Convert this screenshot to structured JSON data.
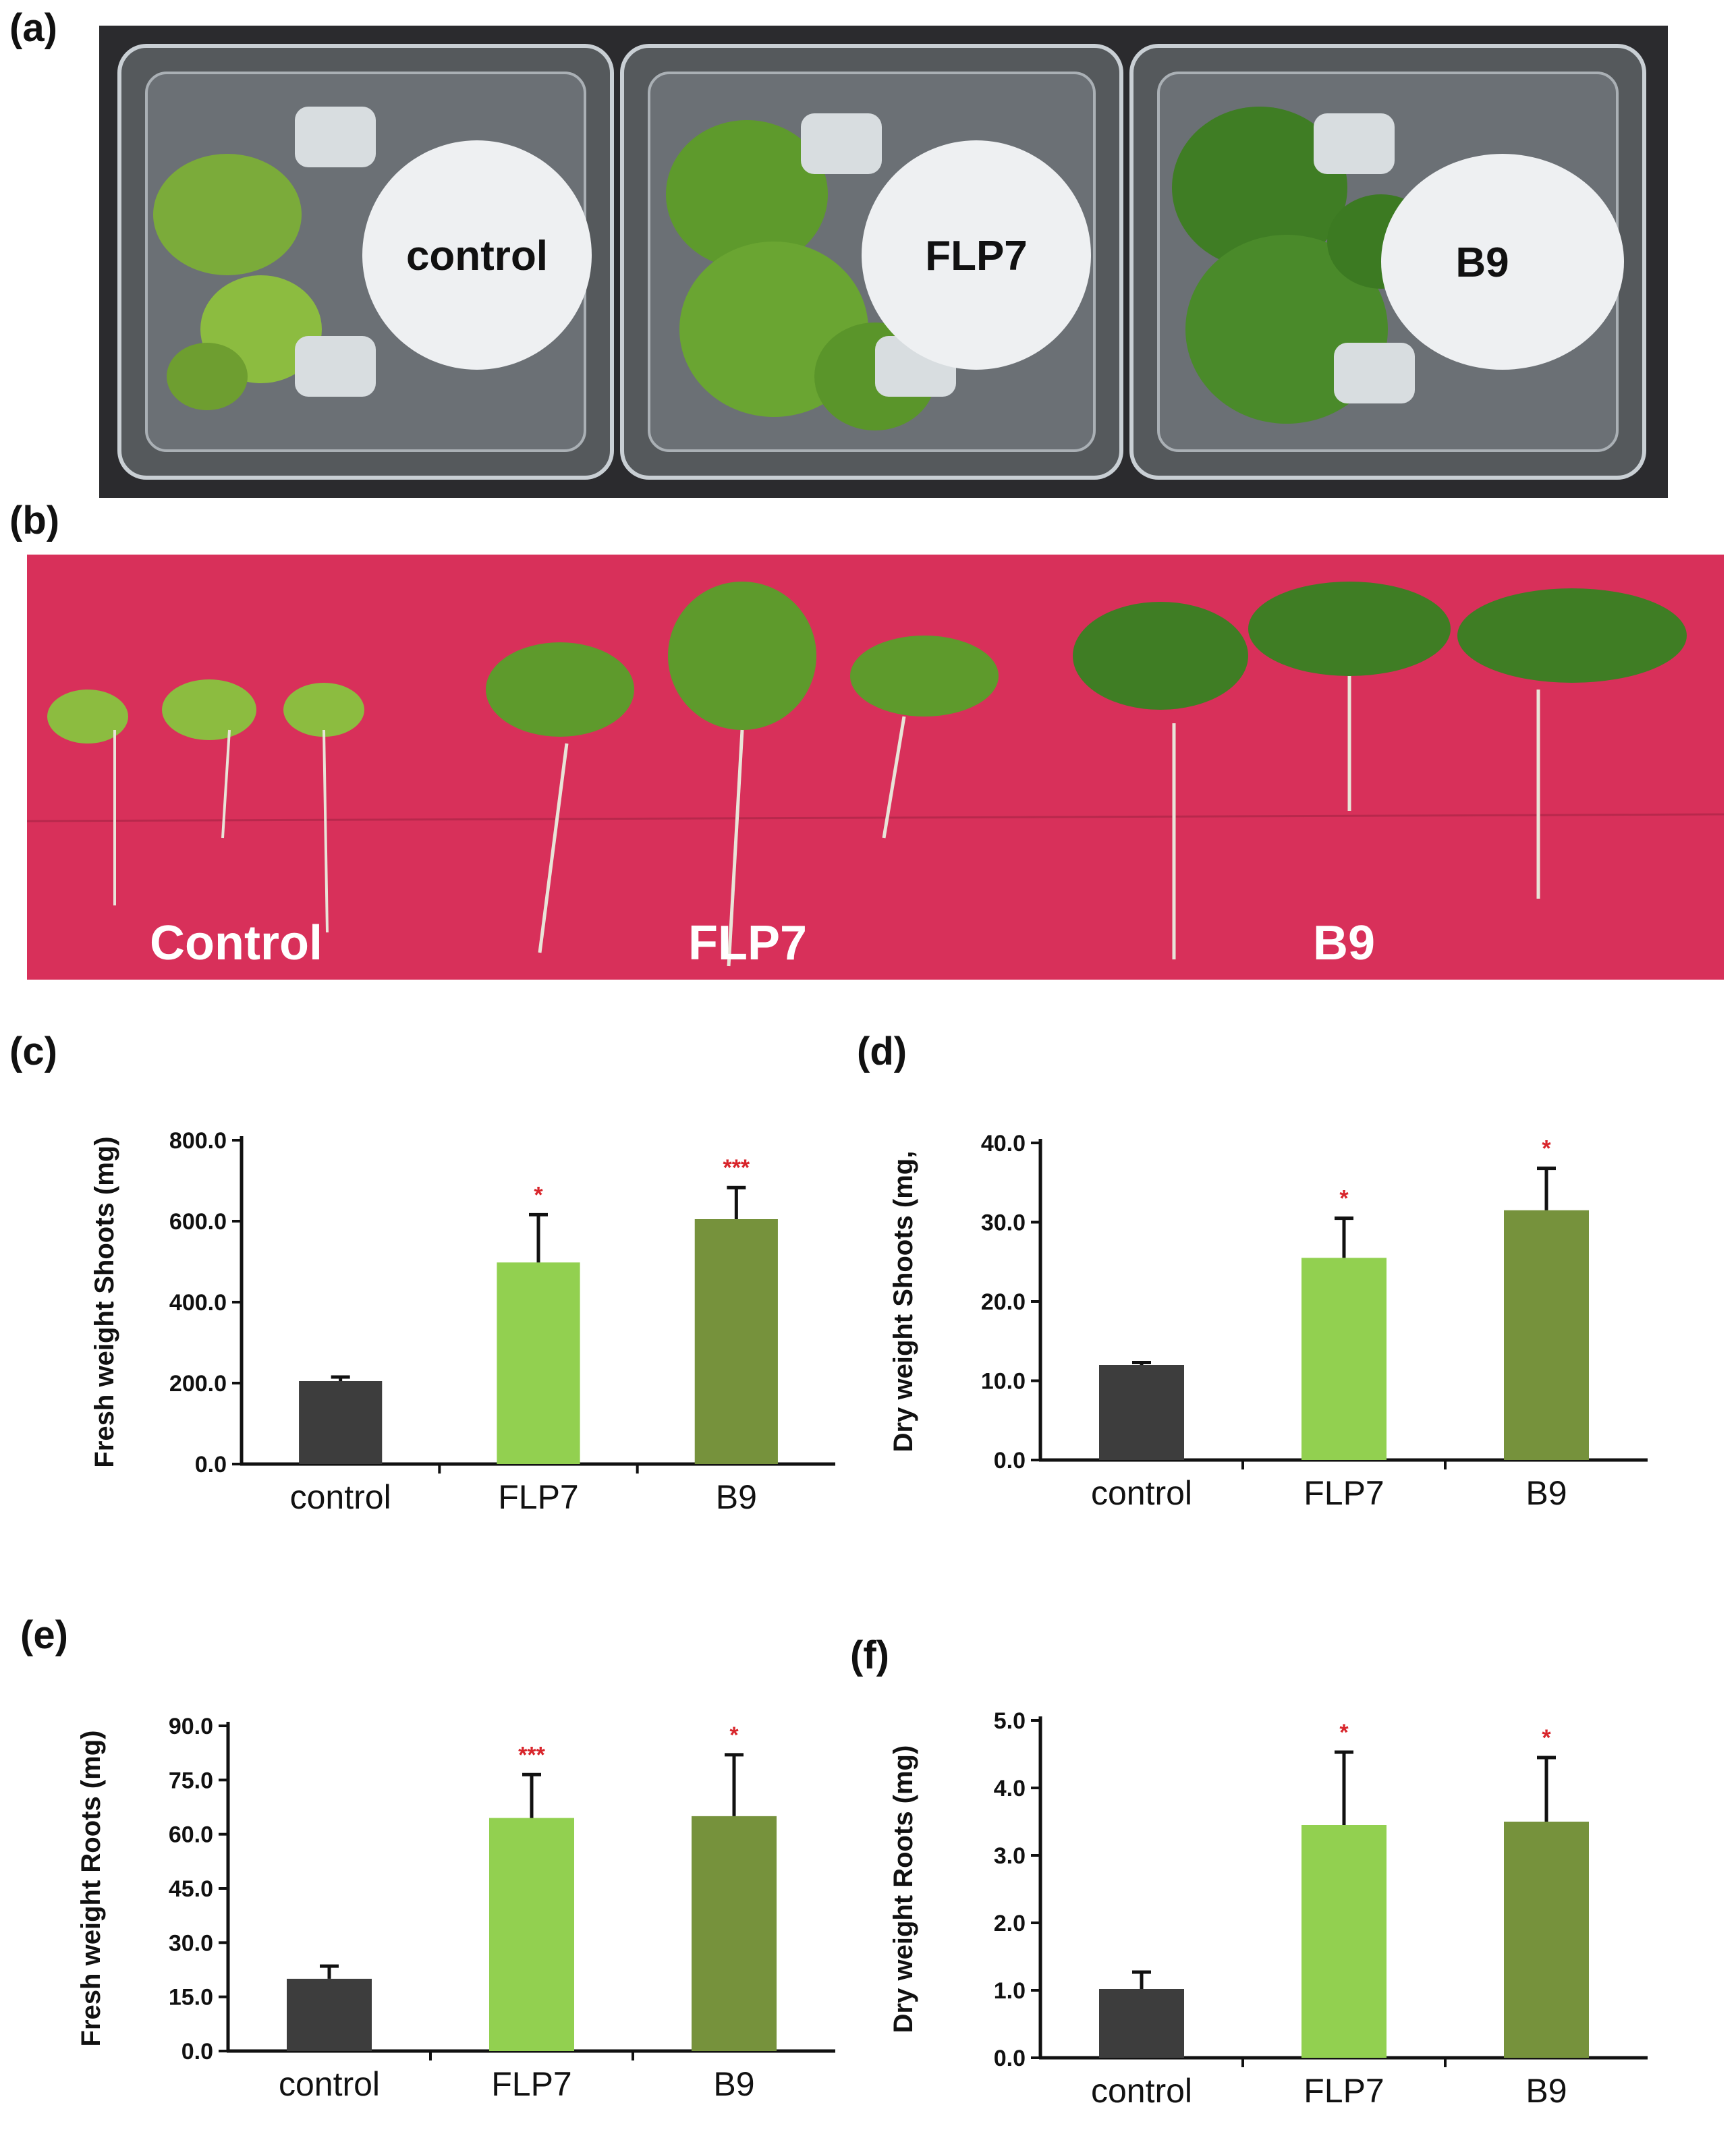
{
  "panels": {
    "a": {
      "letter": "(a)",
      "labels": [
        "control",
        "FLP7",
        "B9"
      ]
    },
    "b": {
      "letter": "(b)",
      "labels": [
        "Control",
        "FLP7",
        "B9"
      ]
    },
    "c": {
      "letter": "(c)"
    },
    "d": {
      "letter": "(d)"
    },
    "e": {
      "letter": "(e)"
    },
    "f": {
      "letter": "(f)"
    }
  },
  "colors": {
    "control": "#3d3d3d",
    "FLP7": "#92d050",
    "B9": "#76923c",
    "significance": "#d8252b",
    "photo_a_background": "#2b2b2e",
    "photo_b_background": "#d8305a"
  },
  "chart_data": [
    {
      "panel": "c",
      "type": "bar",
      "categories": [
        "control",
        "FLP7",
        "B9"
      ],
      "values": [
        205,
        498,
        605
      ],
      "errors": [
        10,
        118,
        78
      ],
      "significance": [
        "",
        "*",
        "***"
      ],
      "ylabel": "Fresh weight Shoots (mg)",
      "ylim": [
        0,
        800
      ],
      "yticks": [
        "0.0",
        "200.0",
        "400.0",
        "600.0",
        "800.0"
      ],
      "xlabel": "",
      "title": ""
    },
    {
      "panel": "d",
      "type": "bar",
      "categories": [
        "control",
        "FLP7",
        "B9"
      ],
      "values": [
        12.0,
        25.5,
        31.5
      ],
      "errors": [
        0.3,
        5.0,
        5.3
      ],
      "significance": [
        "",
        "*",
        "*"
      ],
      "ylabel": "Dry weight Shoots (mg,",
      "ylim": [
        0,
        40
      ],
      "yticks": [
        "0.0",
        "10.0",
        "20.0",
        "30.0",
        "40.0"
      ],
      "xlabel": "",
      "title": ""
    },
    {
      "panel": "e",
      "type": "bar",
      "categories": [
        "control",
        "FLP7",
        "B9"
      ],
      "values": [
        20.0,
        64.5,
        65.0
      ],
      "errors": [
        3.5,
        12.0,
        17.0
      ],
      "significance": [
        "",
        "***",
        "*"
      ],
      "ylabel": "Fresh weight Roots (mg)",
      "ylim": [
        0,
        90
      ],
      "yticks": [
        "0.0",
        "15.0",
        "30.0",
        "45.0",
        "60.0",
        "75.0",
        "90.0"
      ],
      "xlabel": "",
      "title": ""
    },
    {
      "panel": "f",
      "type": "bar",
      "categories": [
        "control",
        "FLP7",
        "B9"
      ],
      "values": [
        1.02,
        3.45,
        3.5
      ],
      "errors": [
        0.25,
        1.08,
        0.95
      ],
      "significance": [
        "",
        "*",
        "*"
      ],
      "ylabel": "Dry weight Roots (mg)",
      "ylim": [
        0,
        5
      ],
      "yticks": [
        "0.0",
        "1.0",
        "2.0",
        "3.0",
        "4.0",
        "5.0"
      ],
      "xlabel": "",
      "title": ""
    }
  ]
}
